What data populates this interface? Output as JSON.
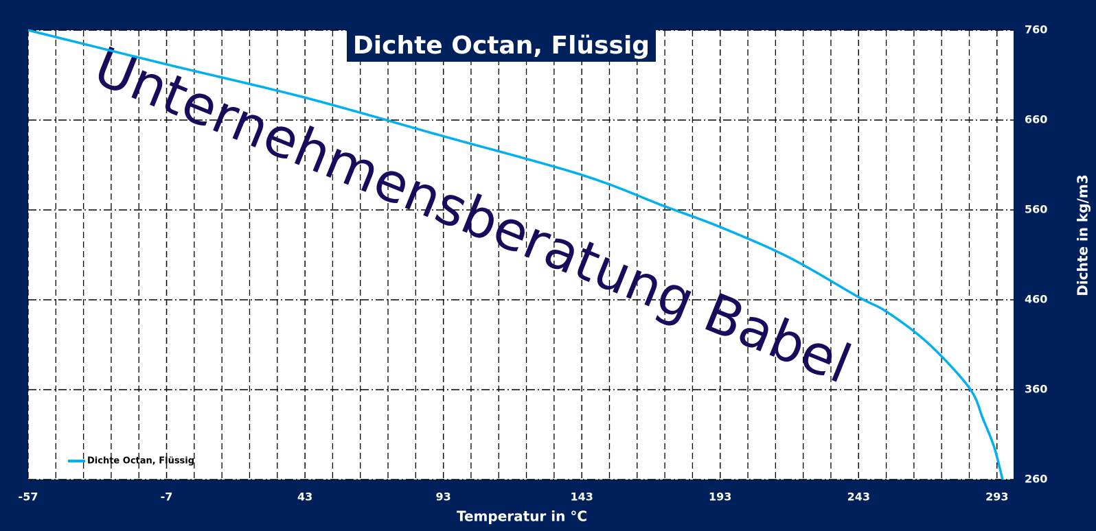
{
  "chart_data": {
    "type": "line",
    "title": "Dichte Octan, Flüssig",
    "watermark": "Unternehmensberatung Babel",
    "x_label": "Temperatur in °C",
    "y_label": "Dichte in kg/m3",
    "x": [
      -57,
      -7,
      43,
      93,
      143,
      173,
      193,
      218,
      243,
      253,
      268,
      283,
      288,
      292,
      295
    ],
    "series": [
      {
        "name": "Dichte Octan, Flüssig",
        "color": "#00b0f0",
        "values": [
          760,
          722,
          685,
          642,
          599,
          564,
          541,
          507,
          463,
          447,
          412,
          362,
          327,
          296,
          260
        ]
      }
    ],
    "xlim": [
      -57,
      299
    ],
    "xticks": [
      -57,
      -7,
      43,
      93,
      143,
      193,
      243,
      293
    ],
    "ylim": [
      260,
      760
    ],
    "yticks": [
      260,
      360,
      460,
      560,
      660,
      760
    ],
    "grid": true,
    "legend": "lower left"
  }
}
